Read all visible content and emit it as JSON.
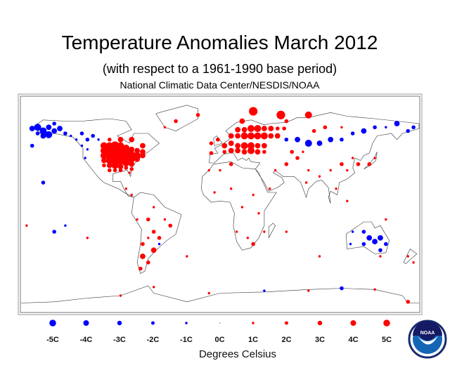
{
  "title": "Temperature Anomalies March 2012",
  "subtitle": "(with respect to a 1961-1990 base period)",
  "source": "National Climatic Data Center/NESDIS/NOAA",
  "logo_text": "NOAA",
  "colors": {
    "warm": "#ff0000",
    "cold": "#0000ff",
    "zero": "#22aa22",
    "coast": "#333333"
  },
  "chart_data": {
    "type": "scatter",
    "title": "Temperature Anomalies March 2012",
    "unit_label": "Degrees Celsius",
    "legend": {
      "placement": "bottom",
      "values": [
        -5,
        -4,
        -3,
        -2,
        -1,
        0,
        1,
        2,
        3,
        4,
        5
      ],
      "labels": [
        "-5C",
        "-4C",
        "-3C",
        "-2C",
        "-1C",
        "0C",
        "1C",
        "2C",
        "3C",
        "4C",
        "5C"
      ]
    },
    "stations_lon_lat_anomaly": [
      [
        -165,
        65,
        -4
      ],
      [
        -160,
        62,
        -4
      ],
      [
        -155,
        65,
        -3
      ],
      [
        -150,
        62,
        -3
      ],
      [
        -160,
        58,
        -3
      ],
      [
        -155,
        59,
        -4
      ],
      [
        -145,
        64,
        -3
      ],
      [
        -165,
        60,
        -2
      ],
      [
        -150,
        68,
        -2
      ],
      [
        -170,
        64,
        -3
      ],
      [
        -140,
        60,
        -2
      ],
      [
        -135,
        58,
        -1
      ],
      [
        -130,
        55,
        -1
      ],
      [
        -125,
        50,
        -1
      ],
      [
        -120,
        55,
        -2
      ],
      [
        -115,
        58,
        -2
      ],
      [
        -125,
        60,
        -2
      ],
      [
        -110,
        55,
        -1
      ],
      [
        -120,
        47,
        -1
      ],
      [
        -122,
        40,
        -1
      ],
      [
        -105,
        50,
        4
      ],
      [
        -100,
        50,
        4
      ],
      [
        -95,
        50,
        5
      ],
      [
        -90,
        50,
        4
      ],
      [
        -85,
        48,
        4
      ],
      [
        -80,
        47,
        3
      ],
      [
        -75,
        46,
        3
      ],
      [
        -70,
        45,
        3
      ],
      [
        -105,
        46,
        4
      ],
      [
        -100,
        46,
        5
      ],
      [
        -95,
        46,
        5
      ],
      [
        -90,
        46,
        5
      ],
      [
        -85,
        44,
        5
      ],
      [
        -80,
        43,
        4
      ],
      [
        -75,
        42,
        4
      ],
      [
        -70,
        42,
        3
      ],
      [
        -105,
        42,
        4
      ],
      [
        -100,
        42,
        5
      ],
      [
        -95,
        42,
        5
      ],
      [
        -90,
        42,
        5
      ],
      [
        -85,
        40,
        5
      ],
      [
        -80,
        39,
        4
      ],
      [
        -75,
        39,
        3
      ],
      [
        -105,
        38,
        3
      ],
      [
        -100,
        38,
        4
      ],
      [
        -95,
        38,
        5
      ],
      [
        -90,
        38,
        5
      ],
      [
        -85,
        36,
        4
      ],
      [
        -80,
        35,
        3
      ],
      [
        -105,
        34,
        2
      ],
      [
        -100,
        34,
        3
      ],
      [
        -95,
        34,
        4
      ],
      [
        -90,
        33,
        3
      ],
      [
        -85,
        32,
        2
      ],
      [
        -80,
        31,
        2
      ],
      [
        -100,
        30,
        2
      ],
      [
        -95,
        30,
        2
      ],
      [
        -90,
        30,
        2
      ],
      [
        -82,
        28,
        1
      ],
      [
        -80,
        55,
        3
      ],
      [
        -70,
        50,
        3
      ],
      [
        -90,
        55,
        3
      ],
      [
        -100,
        55,
        2
      ],
      [
        -40,
        70,
        2
      ],
      [
        -50,
        65,
        1
      ],
      [
        -20,
        75,
        2
      ],
      [
        -8,
        52,
        2
      ],
      [
        -2,
        55,
        2
      ],
      [
        4,
        50,
        3
      ],
      [
        10,
        52,
        3
      ],
      [
        16,
        50,
        3
      ],
      [
        22,
        50,
        4
      ],
      [
        28,
        50,
        4
      ],
      [
        34,
        50,
        3
      ],
      [
        40,
        50,
        3
      ],
      [
        -8,
        44,
        2
      ],
      [
        4,
        45,
        2
      ],
      [
        10,
        46,
        3
      ],
      [
        16,
        46,
        3
      ],
      [
        22,
        45,
        3
      ],
      [
        28,
        46,
        4
      ],
      [
        34,
        45,
        3
      ],
      [
        40,
        45,
        2
      ],
      [
        10,
        58,
        3
      ],
      [
        16,
        58,
        3
      ],
      [
        22,
        58,
        4
      ],
      [
        28,
        58,
        4
      ],
      [
        34,
        58,
        4
      ],
      [
        40,
        58,
        4
      ],
      [
        46,
        58,
        3
      ],
      [
        52,
        58,
        3
      ],
      [
        16,
        63,
        3
      ],
      [
        22,
        63,
        3
      ],
      [
        28,
        64,
        4
      ],
      [
        34,
        64,
        4
      ],
      [
        40,
        64,
        3
      ],
      [
        46,
        64,
        3
      ],
      [
        52,
        64,
        2
      ],
      [
        58,
        64,
        2
      ],
      [
        30,
        78,
        5
      ],
      [
        55,
        75,
        5
      ],
      [
        80,
        75,
        4
      ],
      [
        20,
        70,
        3
      ],
      [
        60,
        70,
        2
      ],
      [
        60,
        55,
        -2
      ],
      [
        70,
        55,
        -3
      ],
      [
        80,
        52,
        -4
      ],
      [
        90,
        52,
        -3
      ],
      [
        100,
        55,
        -3
      ],
      [
        110,
        55,
        -2
      ],
      [
        120,
        60,
        -2
      ],
      [
        130,
        62,
        -3
      ],
      [
        140,
        65,
        -2
      ],
      [
        150,
        65,
        -1
      ],
      [
        170,
        62,
        -2
      ],
      [
        85,
        62,
        2
      ],
      [
        95,
        65,
        2
      ],
      [
        110,
        65,
        1
      ],
      [
        160,
        68,
        -3
      ],
      [
        175,
        65,
        -2
      ],
      [
        70,
        40,
        2
      ],
      [
        60,
        35,
        2
      ],
      [
        50,
        30,
        1
      ],
      [
        80,
        30,
        1
      ],
      [
        100,
        30,
        1
      ],
      [
        110,
        35,
        2
      ],
      [
        115,
        30,
        1
      ],
      [
        120,
        40,
        1
      ],
      [
        125,
        35,
        2
      ],
      [
        135,
        35,
        2
      ],
      [
        140,
        40,
        1
      ],
      [
        78,
        20,
        1
      ],
      [
        90,
        25,
        1
      ],
      [
        105,
        15,
        1
      ],
      [
        115,
        5,
        1
      ],
      [
        65,
        45,
        2
      ],
      [
        75,
        45,
        1
      ],
      [
        0,
        30,
        1
      ],
      [
        10,
        35,
        2
      ],
      [
        -10,
        30,
        1
      ],
      [
        -5,
        12,
        1
      ],
      [
        10,
        15,
        1
      ],
      [
        30,
        10,
        1
      ],
      [
        20,
        0,
        1
      ],
      [
        35,
        -5,
        1
      ],
      [
        25,
        -25,
        1
      ],
      [
        30,
        -30,
        2
      ],
      [
        15,
        -20,
        1
      ],
      [
        40,
        -20,
        1
      ],
      [
        45,
        15,
        1
      ],
      [
        -60,
        0,
        1
      ],
      [
        -65,
        -10,
        2
      ],
      [
        -50,
        -10,
        1
      ],
      [
        -45,
        -15,
        2
      ],
      [
        -60,
        -20,
        2
      ],
      [
        -55,
        -25,
        2
      ],
      [
        -65,
        -25,
        1
      ],
      [
        -70,
        -30,
        2
      ],
      [
        -60,
        -35,
        3
      ],
      [
        -70,
        -40,
        3
      ],
      [
        -65,
        -45,
        2
      ],
      [
        -72,
        -50,
        2
      ],
      [
        -55,
        -30,
        -1
      ],
      [
        -75,
        -10,
        1
      ],
      [
        -80,
        10,
        1
      ],
      [
        -85,
        15,
        1
      ],
      [
        120,
        -20,
        -1
      ],
      [
        130,
        -20,
        -2
      ],
      [
        135,
        -25,
        -3
      ],
      [
        140,
        -28,
        -3
      ],
      [
        145,
        -25,
        -3
      ],
      [
        150,
        -30,
        -2
      ],
      [
        145,
        -35,
        -2
      ],
      [
        130,
        -30,
        -2
      ],
      [
        118,
        -30,
        -1
      ],
      [
        145,
        -40,
        1
      ],
      [
        170,
        -40,
        1
      ],
      [
        175,
        -45,
        1
      ],
      [
        150,
        -10,
        1
      ],
      [
        -150,
        -20,
        -2
      ],
      [
        -140,
        -15,
        -1
      ],
      [
        -175,
        -15,
        1
      ],
      [
        -160,
        20,
        -2
      ],
      [
        -120,
        -25,
        1
      ],
      [
        -30,
        -40,
        1
      ],
      [
        60,
        -20,
        1
      ],
      [
        90,
        -40,
        1
      ],
      [
        -170,
        50,
        -2
      ],
      [
        -60,
        -65,
        1
      ],
      [
        -10,
        -70,
        1
      ],
      [
        40,
        -68,
        -1
      ],
      [
        80,
        -68,
        1
      ],
      [
        110,
        -66,
        -2
      ],
      [
        140,
        -67,
        1
      ],
      [
        170,
        -77,
        2
      ],
      [
        -90,
        -72,
        1
      ]
    ]
  }
}
